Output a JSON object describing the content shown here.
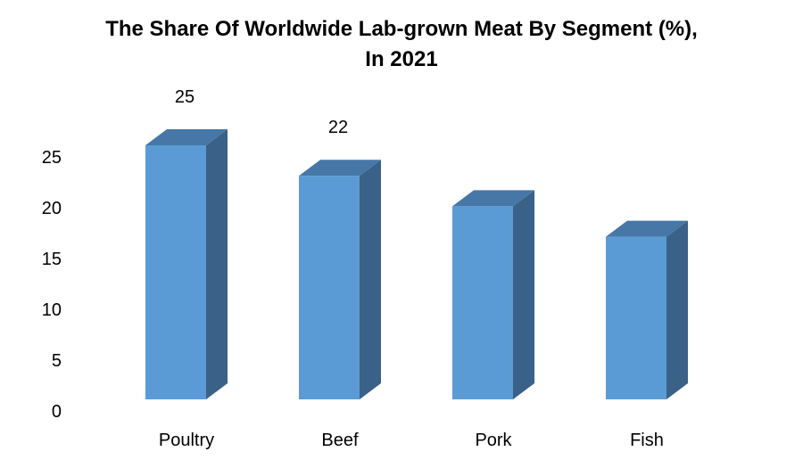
{
  "chart_data": {
    "type": "bar",
    "title": "The Share Of Worldwide Lab-grown Meat By Segment (%),",
    "subtitle": "In 2021",
    "categories": [
      "Poultry",
      "Beef",
      "Pork",
      "Fish"
    ],
    "values": [
      25,
      22,
      19,
      16
    ],
    "data_labels": [
      "25",
      "22",
      "",
      ""
    ],
    "ylim": [
      0,
      25
    ],
    "yticks": [
      0,
      5,
      10,
      15,
      20,
      25
    ],
    "grid": false,
    "legend": "none",
    "style": "3d-column",
    "colors": {
      "front": "#5b9bd5",
      "side": "#3a6187",
      "top": "#4677a6"
    }
  }
}
